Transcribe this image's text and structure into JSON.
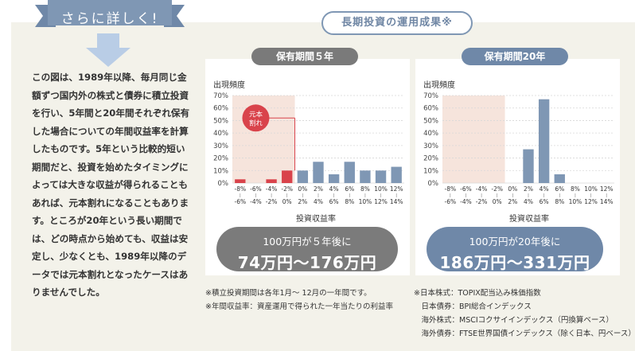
{
  "ribbon_label": "さらに詳しく!",
  "description": "この図は、1989年以降、毎月同じ金額ずつ国内外の株式と債券に積立投資を行い、5年間と20年間それぞれ保有した場合についての年間収益率を計算したものです。5年という比較的短い期間だと、投資を始めたタイミングによっては大きな収益が得られることもあれば、元本割れになることもあります。ところが20年という長い期間では、どの時点から始めても、収益は安定し、少なくとも、1989年以降のデータでは元本割れとなったケースはありませんでした。",
  "title": "長期投資の運用成果※",
  "colors": {
    "panel": "#f3f2ea",
    "blue": "#7f97b4",
    "red": "#d9434b",
    "gray": "#7b7b7b",
    "loss_zone": "#f6e4dc"
  },
  "chart_data": [
    {
      "type": "bar",
      "title": "保有期間５年",
      "ylabel": "出現頻度",
      "xlabel": "投資収益率",
      "ylim": [
        0,
        70
      ],
      "yticks": [
        "0%",
        "10%",
        "20%",
        "30%",
        "40%",
        "50%",
        "60%",
        "70%"
      ],
      "categories": [
        [
          "-8%",
          "-6%"
        ],
        [
          "-6%",
          "-4%"
        ],
        [
          "-4%",
          "-2%"
        ],
        [
          "-2%",
          "0%"
        ],
        [
          "0%",
          "2%"
        ],
        [
          "2%",
          "4%"
        ],
        [
          "4%",
          "6%"
        ],
        [
          "6%",
          "8%"
        ],
        [
          "8%",
          "10%"
        ],
        [
          "10%",
          "12%"
        ],
        [
          "12%",
          "14%"
        ]
      ],
      "values": [
        3,
        0,
        3,
        10,
        10,
        17,
        7,
        17,
        10,
        10,
        13
      ],
      "loss_categories": 4,
      "annotation": "元本割れ"
    },
    {
      "type": "bar",
      "title": "保有期間20年",
      "ylabel": "出現頻度",
      "xlabel": "投資収益率",
      "ylim": [
        0,
        70
      ],
      "yticks": [
        "0%",
        "10%",
        "20%",
        "30%",
        "40%",
        "50%",
        "60%",
        "70%"
      ],
      "categories": [
        [
          "-8%",
          "-6%"
        ],
        [
          "-6%",
          "-4%"
        ],
        [
          "-4%",
          "-2%"
        ],
        [
          "-2%",
          "0%"
        ],
        [
          "0%",
          "2%"
        ],
        [
          "2%",
          "4%"
        ],
        [
          "4%",
          "6%"
        ],
        [
          "6%",
          "8%"
        ],
        [
          "8%",
          "10%"
        ],
        [
          "10%",
          "12%"
        ],
        [
          "12%",
          "14%"
        ]
      ],
      "values": [
        0,
        0,
        0,
        0,
        0,
        27,
        67,
        7,
        0,
        0,
        0
      ],
      "loss_categories": 4
    }
  ],
  "result_left": {
    "line1": "100万円が５年後に",
    "line2": "74万円〜176万円"
  },
  "result_right": {
    "line1": "100万円が20年後に",
    "line2": "186万円〜331万円"
  },
  "notes_left": [
    "※積立投資期間は各年1月〜 12月の一年間です。",
    "※年間収益率：資産運用で得られた一年当たりの利益率"
  ],
  "notes_right": [
    "※日本株式：TOPIX配当込み株価指数",
    "　日本債券：BPI総合インデックス",
    "　海外株式：MSCIコクサイインデックス（円換算ベース）",
    "　海外債券：FTSE世界国債インデックス（除く日本、円ベース）"
  ]
}
